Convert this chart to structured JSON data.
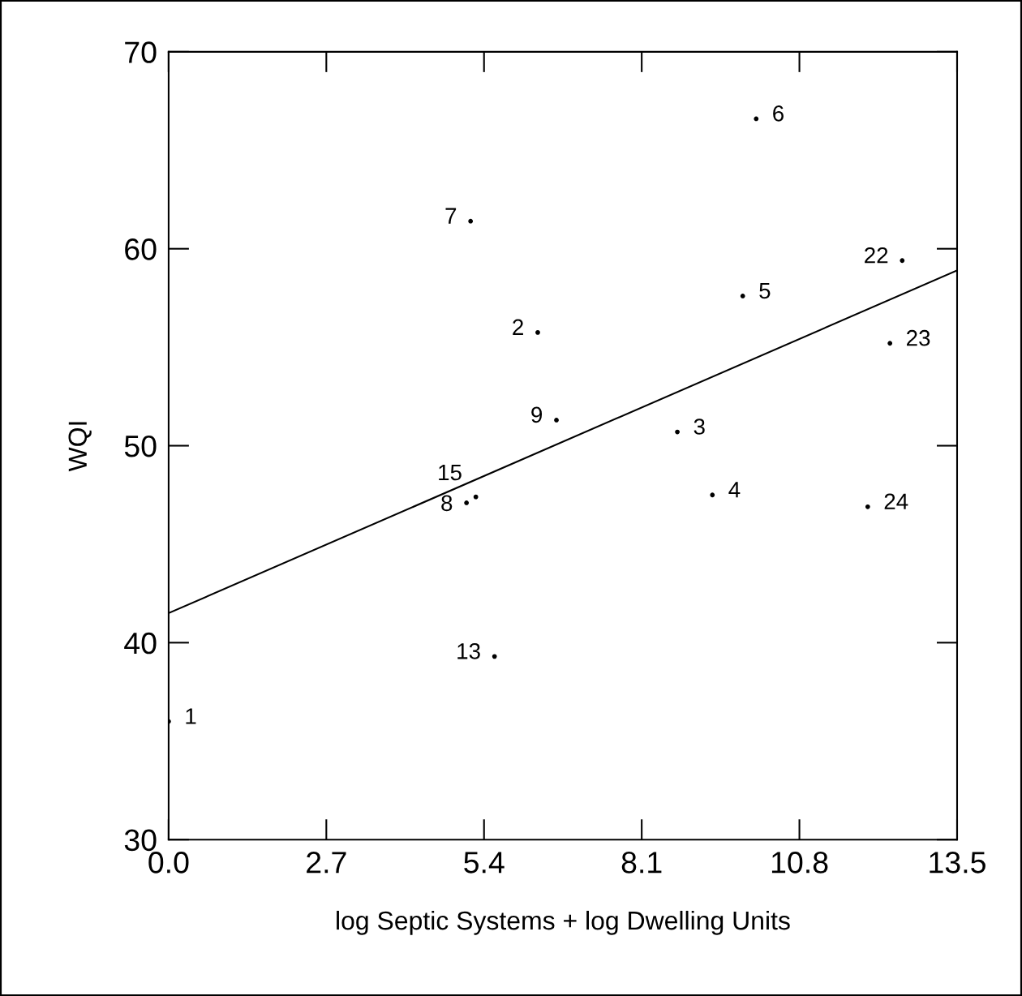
{
  "chart_data": {
    "type": "scatter",
    "xlabel": "log Septic Systems + log Dwelling Units",
    "ylabel": "WQI",
    "xlim": [
      0,
      13.5
    ],
    "xticks": [
      {
        "value": 0,
        "label": "0.0"
      },
      {
        "value": 2.7,
        "label": "2.7"
      },
      {
        "value": 5.4,
        "label": "5.4"
      },
      {
        "value": 8.1,
        "label": "8.1"
      },
      {
        "value": 10.8,
        "label": "10.8"
      },
      {
        "value": 13.5,
        "label": "13.5"
      }
    ],
    "ylim": [
      30,
      70
    ],
    "yticks": [
      30,
      40,
      50,
      60,
      70
    ],
    "grid": false,
    "marker": "circle",
    "series": [
      {
        "color": "#000000",
        "x": [
          0,
          6.32,
          8.71,
          9.31,
          9.83,
          10.06,
          5.17,
          5.1,
          6.64,
          5.58,
          5.26,
          12.56,
          12.35,
          11.97
        ],
        "values": [
          36.0,
          55.75,
          50.7,
          47.5,
          57.6,
          66.6,
          61.4,
          47.1,
          51.3,
          39.3,
          47.4,
          59.4,
          55.2,
          46.9
        ]
      },
      {
        "type": "line",
        "color": "#000000",
        "line_style": "solid",
        "marker": "none",
        "x": [
          0,
          13.5
        ],
        "values": [
          41.5,
          58.9
        ]
      }
    ],
    "annotations": [
      {
        "text": "1",
        "x": 0,
        "y": 36.0
      },
      {
        "text": "2",
        "x": 6.32,
        "y": 55.75
      },
      {
        "text": "3",
        "x": 8.71,
        "y": 50.7
      },
      {
        "text": "4",
        "x": 9.31,
        "y": 47.5
      },
      {
        "text": "5",
        "x": 9.83,
        "y": 57.6
      },
      {
        "text": "6",
        "x": 10.06,
        "y": 66.6
      },
      {
        "text": "7",
        "x": 5.17,
        "y": 61.4
      },
      {
        "text": "8",
        "x": 5.1,
        "y": 47.1
      },
      {
        "text": "9",
        "x": 6.64,
        "y": 51.3
      },
      {
        "text": "13",
        "x": 5.58,
        "y": 39.3
      },
      {
        "text": "15",
        "x": 5.26,
        "y": 47.4
      },
      {
        "text": "22",
        "x": 12.56,
        "y": 59.4
      },
      {
        "text": "23",
        "x": 12.35,
        "y": 55.2
      },
      {
        "text": "24",
        "x": 11.97,
        "y": 46.9
      }
    ]
  }
}
